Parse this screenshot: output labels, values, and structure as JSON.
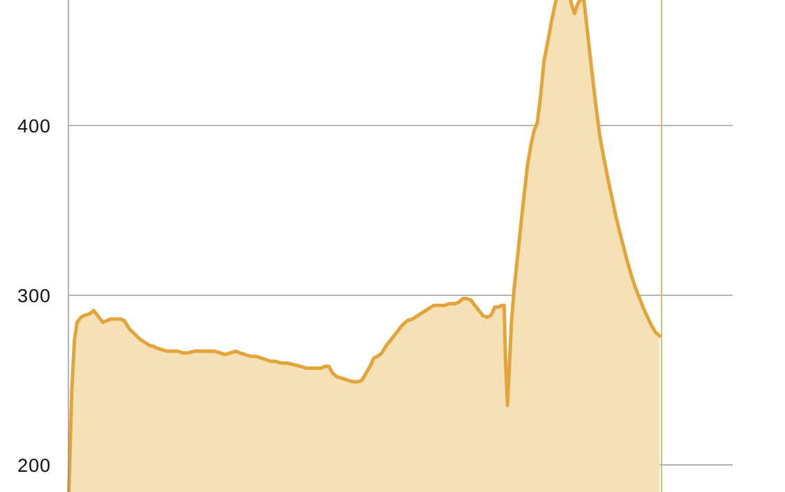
{
  "chart_data": {
    "type": "area",
    "title": "",
    "xlabel": "",
    "ylabel": "",
    "ylim": [
      184,
      474
    ],
    "xlim": [
      0,
      1000
    ],
    "grid": true,
    "legend": "none",
    "y_ticks": [
      {
        "value": 200,
        "label": "200"
      },
      {
        "value": 300,
        "label": "300"
      },
      {
        "value": 400,
        "label": "400"
      }
    ],
    "colors": {
      "line": "#E3A53B",
      "fill": "#F5E1B5",
      "marker": "#E8A44A",
      "grid": "#8C8C8C",
      "axis": "#8C8C8C",
      "tick_text": "#111111"
    },
    "marker_x": 893,
    "series": [
      {
        "points": [
          [
            0,
            175
          ],
          [
            5,
            243
          ],
          [
            9,
            273
          ],
          [
            13,
            284
          ],
          [
            19,
            287
          ],
          [
            24,
            288
          ],
          [
            32,
            289
          ],
          [
            38,
            291
          ],
          [
            42,
            289
          ],
          [
            48,
            286
          ],
          [
            52,
            284
          ],
          [
            58,
            285
          ],
          [
            64,
            286
          ],
          [
            72,
            286
          ],
          [
            78,
            286
          ],
          [
            84,
            285
          ],
          [
            92,
            280
          ],
          [
            100,
            277
          ],
          [
            108,
            274
          ],
          [
            116,
            272
          ],
          [
            124,
            270
          ],
          [
            128,
            270
          ],
          [
            132,
            269
          ],
          [
            140,
            268
          ],
          [
            148,
            267
          ],
          [
            156,
            267
          ],
          [
            164,
            267
          ],
          [
            172,
            266
          ],
          [
            180,
            266
          ],
          [
            190,
            267
          ],
          [
            200,
            267
          ],
          [
            210,
            267
          ],
          [
            220,
            267
          ],
          [
            228,
            266
          ],
          [
            236,
            265
          ],
          [
            244,
            266
          ],
          [
            252,
            267
          ],
          [
            258,
            266
          ],
          [
            266,
            265
          ],
          [
            274,
            264
          ],
          [
            282,
            264
          ],
          [
            290,
            263
          ],
          [
            298,
            262
          ],
          [
            304,
            261
          ],
          [
            312,
            261
          ],
          [
            320,
            260
          ],
          [
            330,
            260
          ],
          [
            340,
            259
          ],
          [
            350,
            258
          ],
          [
            358,
            257
          ],
          [
            366,
            257
          ],
          [
            374,
            257
          ],
          [
            380,
            257
          ],
          [
            386,
            258
          ],
          [
            392,
            258
          ],
          [
            398,
            254
          ],
          [
            404,
            252
          ],
          [
            412,
            251
          ],
          [
            420,
            250
          ],
          [
            428,
            249
          ],
          [
            436,
            249
          ],
          [
            442,
            250
          ],
          [
            448,
            254
          ],
          [
            454,
            258
          ],
          [
            460,
            263
          ],
          [
            466,
            264
          ],
          [
            472,
            266
          ],
          [
            478,
            270
          ],
          [
            486,
            274
          ],
          [
            494,
            278
          ],
          [
            502,
            282
          ],
          [
            510,
            285
          ],
          [
            518,
            286
          ],
          [
            526,
            288
          ],
          [
            534,
            290
          ],
          [
            542,
            292
          ],
          [
            550,
            294
          ],
          [
            558,
            294
          ],
          [
            566,
            294
          ],
          [
            574,
            295
          ],
          [
            582,
            295
          ],
          [
            588,
            296
          ],
          [
            594,
            298
          ],
          [
            600,
            298
          ],
          [
            606,
            297
          ],
          [
            612,
            294
          ],
          [
            618,
            291
          ],
          [
            624,
            288
          ],
          [
            630,
            287
          ],
          [
            636,
            288
          ],
          [
            642,
            293
          ],
          [
            648,
            293
          ],
          [
            652,
            294
          ],
          [
            656,
            294
          ],
          [
            658,
            262
          ],
          [
            661,
            235
          ],
          [
            664,
            259
          ],
          [
            667,
            284
          ],
          [
            671,
            304
          ],
          [
            676,
            322
          ],
          [
            681,
            341
          ],
          [
            686,
            359
          ],
          [
            691,
            376
          ],
          [
            696,
            388
          ],
          [
            701,
            397
          ],
          [
            706,
            402
          ],
          [
            711,
            418
          ],
          [
            716,
            438
          ],
          [
            722,
            450
          ],
          [
            728,
            463
          ],
          [
            734,
            474
          ],
          [
            740,
            482
          ],
          [
            746,
            487
          ],
          [
            752,
            484
          ],
          [
            757,
            472
          ],
          [
            762,
            466
          ],
          [
            766,
            471
          ],
          [
            770,
            474
          ],
          [
            776,
            474
          ],
          [
            782,
            453
          ],
          [
            788,
            432
          ],
          [
            794,
            412
          ],
          [
            800,
            394
          ],
          [
            806,
            381
          ],
          [
            812,
            369
          ],
          [
            818,
            358
          ],
          [
            824,
            347
          ],
          [
            830,
            337
          ],
          [
            836,
            328
          ],
          [
            842,
            319
          ],
          [
            848,
            311
          ],
          [
            854,
            304
          ],
          [
            860,
            298
          ],
          [
            866,
            292
          ],
          [
            872,
            287
          ],
          [
            878,
            282
          ],
          [
            884,
            278
          ],
          [
            890,
            276
          ]
        ]
      }
    ]
  }
}
